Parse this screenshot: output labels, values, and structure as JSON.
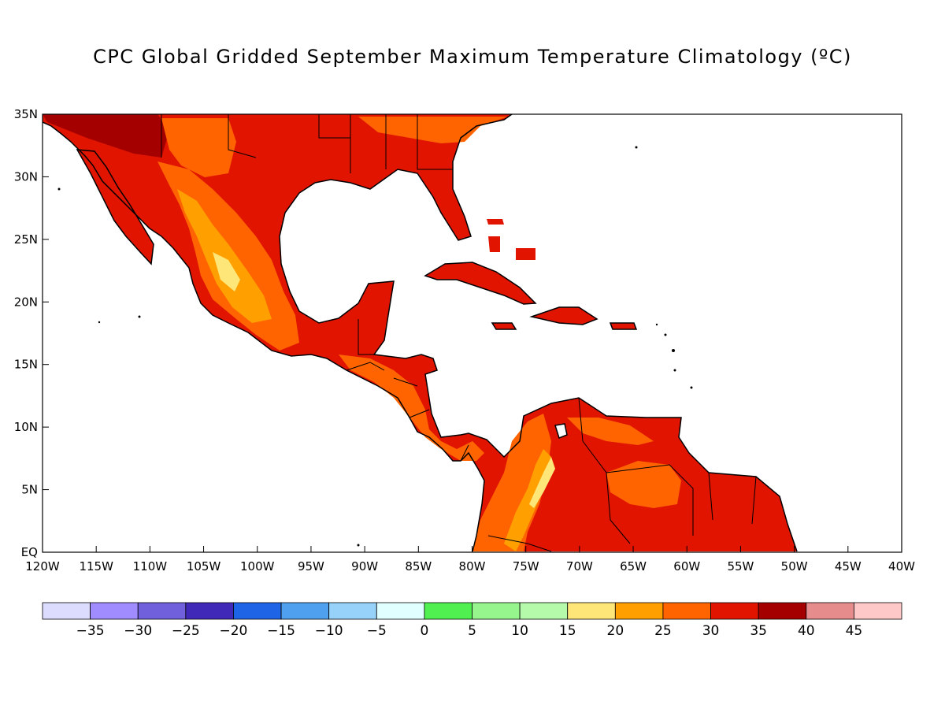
{
  "title": "CPC Global Gridded September Maximum Temperature Climatology (ºC)",
  "map": {
    "lon_range": [
      -120,
      -40
    ],
    "lat_range": [
      0,
      35
    ],
    "x_ticks": [
      {
        "lon": -120,
        "label": "120W"
      },
      {
        "lon": -115,
        "label": "115W"
      },
      {
        "lon": -110,
        "label": "110W"
      },
      {
        "lon": -105,
        "label": "105W"
      },
      {
        "lon": -100,
        "label": "100W"
      },
      {
        "lon": -95,
        "label": "95W"
      },
      {
        "lon": -90,
        "label": "90W"
      },
      {
        "lon": -85,
        "label": "85W"
      },
      {
        "lon": -80,
        "label": "80W"
      },
      {
        "lon": -75,
        "label": "75W"
      },
      {
        "lon": -70,
        "label": "70W"
      },
      {
        "lon": -65,
        "label": "65W"
      },
      {
        "lon": -60,
        "label": "60W"
      },
      {
        "lon": -55,
        "label": "55W"
      },
      {
        "lon": -50,
        "label": "50W"
      },
      {
        "lon": -45,
        "label": "45W"
      },
      {
        "lon": -40,
        "label": "40W"
      }
    ],
    "y_ticks": [
      {
        "lat": 35,
        "label": "35N"
      },
      {
        "lat": 30,
        "label": "30N"
      },
      {
        "lat": 25,
        "label": "25N"
      },
      {
        "lat": 20,
        "label": "20N"
      },
      {
        "lat": 15,
        "label": "15N"
      },
      {
        "lat": 10,
        "label": "10N"
      },
      {
        "lat": 5,
        "label": "5N"
      },
      {
        "lat": 0,
        "label": "EQ"
      }
    ]
  },
  "colorbar": {
    "colors": [
      "#dcdcff",
      "#a08cff",
      "#7060dc",
      "#4028b8",
      "#1e64e6",
      "#50a0f0",
      "#96d2fa",
      "#e1ffff",
      "#50f050",
      "#96f58c",
      "#b4faaa",
      "#ffe678",
      "#ffa000",
      "#ff6400",
      "#e11400",
      "#a50000",
      "#e68c8c",
      "#ffc8c8"
    ],
    "labels": [
      "−35",
      "−30",
      "−25",
      "−20",
      "−15",
      "−10",
      "−5",
      "0",
      "5",
      "10",
      "15",
      "20",
      "25",
      "30",
      "35",
      "40",
      "45"
    ]
  }
}
